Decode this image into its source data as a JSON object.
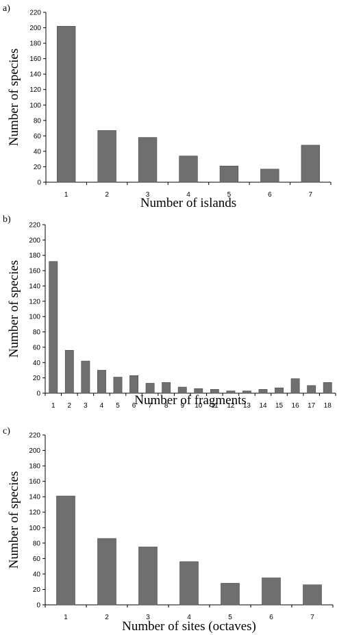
{
  "colors": {
    "bar": "#6f6f6f",
    "bar_edge": "#4a4a4a",
    "axis": "#000000"
  },
  "chart_data": [
    {
      "type": "bar",
      "panel_label": "a)",
      "categories": [
        "1",
        "2",
        "3",
        "4",
        "5",
        "6",
        "7"
      ],
      "values": [
        202,
        67,
        58,
        34,
        21,
        17,
        48
      ],
      "xlabel": "Number of islands",
      "ylabel": "Number of species",
      "ylim": [
        0,
        220
      ],
      "yticks": [
        "0",
        "20",
        "40",
        "60",
        "80",
        "100",
        "120",
        "140",
        "160",
        "180",
        "200",
        "220"
      ],
      "grid": false
    },
    {
      "type": "bar",
      "panel_label": "b)",
      "categories": [
        "1",
        "2",
        "3",
        "4",
        "5",
        "6",
        "7",
        "8",
        "9",
        "10",
        "11",
        "12",
        "13",
        "14",
        "15",
        "16",
        "17",
        "18"
      ],
      "values": [
        172,
        56,
        42,
        30,
        21,
        23,
        13,
        14,
        8,
        6,
        5,
        3,
        3,
        5,
        7,
        19,
        10,
        14
      ],
      "xlabel": "Number of fragments",
      "ylabel": "Number of species",
      "ylim": [
        0,
        220
      ],
      "yticks": [
        "0",
        "20",
        "40",
        "60",
        "80",
        "100",
        "120",
        "140",
        "160",
        "180",
        "200",
        "220"
      ],
      "grid": false
    },
    {
      "type": "bar",
      "panel_label": "c)",
      "categories": [
        "1",
        "2",
        "3",
        "4",
        "5",
        "6",
        "7"
      ],
      "values": [
        141,
        86,
        75,
        56,
        28,
        35,
        26
      ],
      "xlabel": "Number of sites (octaves)",
      "ylabel": "Number of species",
      "ylim": [
        0,
        220
      ],
      "yticks": [
        "0",
        "20",
        "40",
        "60",
        "80",
        "100",
        "120",
        "140",
        "160",
        "180",
        "200",
        "220"
      ],
      "grid": false
    }
  ]
}
